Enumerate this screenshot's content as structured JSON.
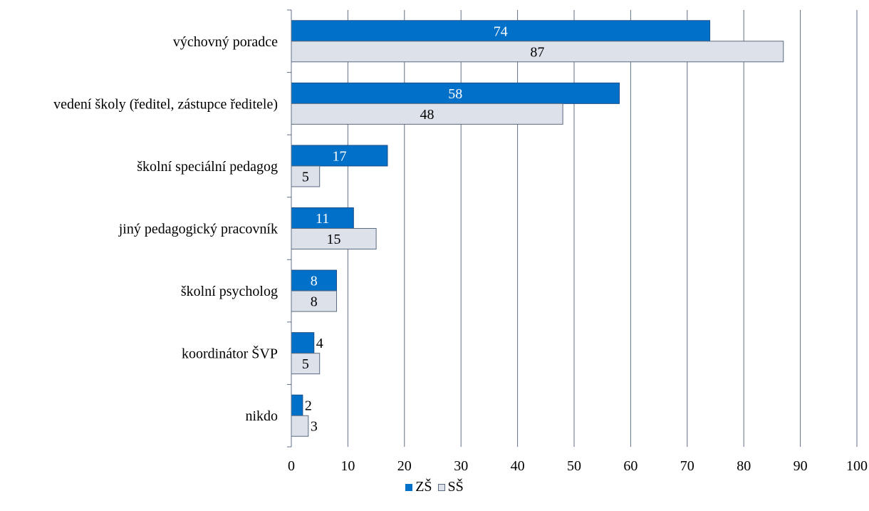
{
  "chart_data": {
    "type": "bar",
    "orientation": "horizontal",
    "categories": [
      "výchovný poradce",
      "vedení školy (ředitel, zástupce ředitele)",
      "školní speciální pedagog",
      "jiný pedagogický pracovník",
      "školní psycholog",
      "koordinátor ŠVP",
      "nikdo"
    ],
    "series": [
      {
        "name": "ZŠ",
        "values": [
          74,
          58,
          17,
          11,
          8,
          4,
          2
        ],
        "color": "#0070c8",
        "label_color": "#ffffff"
      },
      {
        "name": "SŠ",
        "values": [
          87,
          48,
          5,
          15,
          8,
          5,
          3
        ],
        "color": "#dce1ea",
        "label_color": "#000000"
      }
    ],
    "xlim": [
      0,
      100
    ],
    "xticks": [
      0,
      10,
      20,
      30,
      40,
      50,
      60,
      70,
      80,
      90,
      100
    ],
    "grid": true,
    "legend_position": "bottom",
    "title": "",
    "xlabel": "",
    "ylabel": ""
  }
}
